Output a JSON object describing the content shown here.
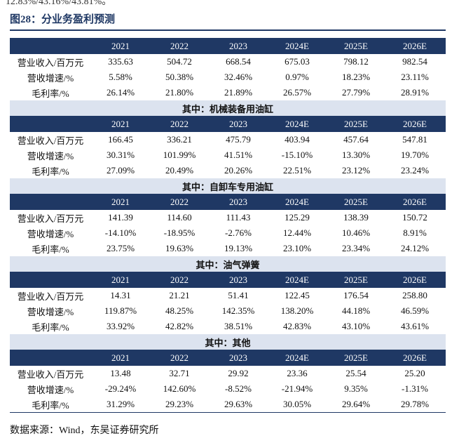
{
  "top_fragment": "12.83%/43.16%/43.81%。",
  "header": {
    "title": "图28：分业务盈利预测"
  },
  "table": {
    "sections": [
      {
        "title": null,
        "columns": [
          "2021",
          "2022",
          "2023",
          "2024E",
          "2025E",
          "2026E"
        ],
        "rows": [
          {
            "label": "营业收入/百万元",
            "values": [
              "335.63",
              "504.72",
              "668.54",
              "675.03",
              "798.12",
              "982.54"
            ]
          },
          {
            "label": "营收增速/%",
            "values": [
              "5.58%",
              "50.38%",
              "32.46%",
              "0.97%",
              "18.23%",
              "23.11%"
            ]
          },
          {
            "label": "毛利率/%",
            "values": [
              "26.14%",
              "21.80%",
              "21.89%",
              "26.57%",
              "27.79%",
              "28.91%"
            ]
          }
        ]
      },
      {
        "title": "其中：机械装备用油缸",
        "columns": [
          "2021",
          "2022",
          "2023",
          "2024E",
          "2025E",
          "2026E"
        ],
        "rows": [
          {
            "label": "营业收入/百万元",
            "values": [
              "166.45",
              "336.21",
              "475.79",
              "403.94",
              "457.64",
              "547.81"
            ]
          },
          {
            "label": "营收增速/%",
            "values": [
              "30.31%",
              "101.99%",
              "41.51%",
              "-15.10%",
              "13.30%",
              "19.70%"
            ]
          },
          {
            "label": "毛利率/%",
            "values": [
              "27.09%",
              "20.49%",
              "20.26%",
              "22.51%",
              "23.12%",
              "23.24%"
            ]
          }
        ]
      },
      {
        "title": "其中：自卸车专用油缸",
        "columns": [
          "2021",
          "2022",
          "2023",
          "2024E",
          "2025E",
          "2026E"
        ],
        "rows": [
          {
            "label": "营业收入/百万元",
            "values": [
              "141.39",
              "114.60",
              "111.43",
              "125.29",
              "138.39",
              "150.72"
            ]
          },
          {
            "label": "营收增速/%",
            "values": [
              "-14.10%",
              "-18.95%",
              "-2.76%",
              "12.44%",
              "10.46%",
              "8.91%"
            ]
          },
          {
            "label": "毛利率/%",
            "values": [
              "23.75%",
              "19.63%",
              "19.13%",
              "23.10%",
              "23.34%",
              "24.12%"
            ]
          }
        ]
      },
      {
        "title": "其中：油气弹簧",
        "columns": [
          "2021",
          "2022",
          "2023",
          "2024E",
          "2025E",
          "2026E"
        ],
        "rows": [
          {
            "label": "营业收入/百万元",
            "values": [
              "14.31",
              "21.21",
              "51.41",
              "122.45",
              "176.54",
              "258.80"
            ]
          },
          {
            "label": "营收增速/%",
            "values": [
              "119.87%",
              "48.25%",
              "142.35%",
              "138.20%",
              "44.18%",
              "46.59%"
            ]
          },
          {
            "label": "毛利率/%",
            "values": [
              "33.92%",
              "42.82%",
              "38.51%",
              "42.83%",
              "43.10%",
              "43.61%"
            ]
          }
        ]
      },
      {
        "title": "其中：其他",
        "columns": [
          "2021",
          "2022",
          "2023",
          "2024E",
          "2025E",
          "2026E"
        ],
        "rows": [
          {
            "label": "营业收入/百万元",
            "values": [
              "13.48",
              "32.71",
              "29.92",
              "23.36",
              "25.54",
              "25.20"
            ]
          },
          {
            "label": "营收增速/%",
            "values": [
              "-29.24%",
              "142.60%",
              "-8.52%",
              "-21.94%",
              "9.35%",
              "-1.31%"
            ]
          },
          {
            "label": "毛利率/%",
            "values": [
              "31.29%",
              "29.23%",
              "29.63%",
              "30.05%",
              "29.64%",
              "29.78%"
            ]
          }
        ]
      }
    ]
  },
  "footer": {
    "source": "数据来源：Wind，东吴证券研究所"
  }
}
